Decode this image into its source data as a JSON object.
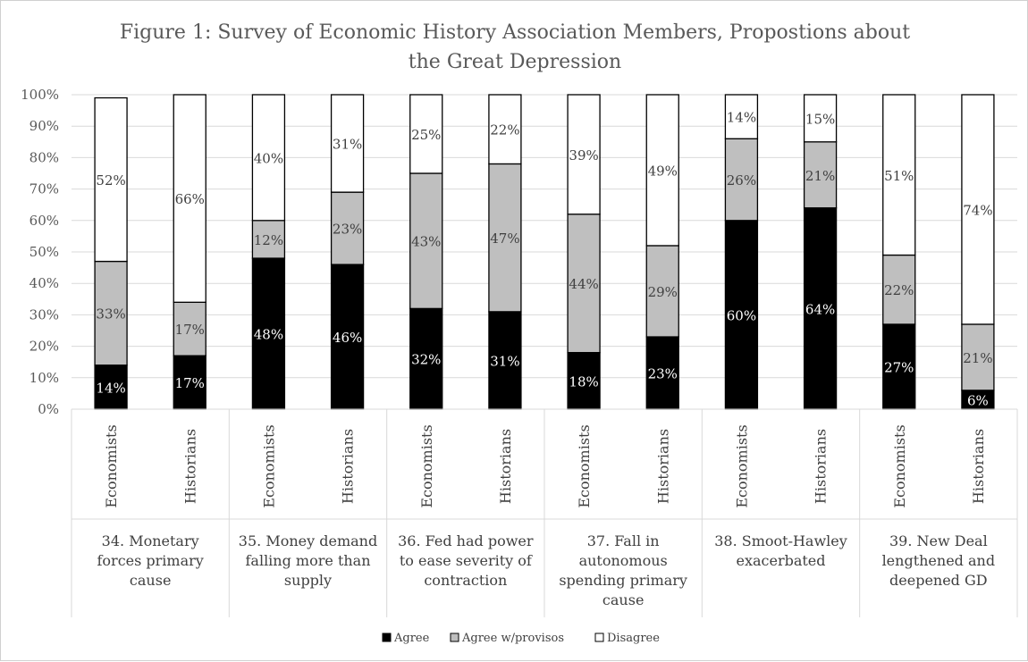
{
  "chart_data": {
    "type": "bar",
    "stacked": true,
    "percent": true,
    "title": "Figure 1: Survey of Economic History Association Members, Propostions about the Great Depression",
    "title_lines": [
      "Figure 1: Survey of Economic History Association Members, Propostions about",
      "the Great Depression"
    ],
    "ylim": [
      0,
      100
    ],
    "yticks": [
      "0%",
      "10%",
      "20%",
      "30%",
      "40%",
      "50%",
      "60%",
      "70%",
      "80%",
      "90%",
      "100%"
    ],
    "grid": true,
    "legend_position": "bottom",
    "groups": [
      {
        "label": "34. Monetary forces primary cause",
        "label_lines": [
          "34. Monetary",
          "forces primary",
          "cause"
        ]
      },
      {
        "label": "35. Money demand falling more than supply",
        "label_lines": [
          "35. Money demand",
          "falling more than",
          "supply"
        ]
      },
      {
        "label": "36. Fed had power to ease severity of contraction",
        "label_lines": [
          "36. Fed had power",
          "to ease severity of",
          "contraction"
        ]
      },
      {
        "label": "37. Fall in autonomous spending primary cause",
        "label_lines": [
          "37. Fall in",
          "autonomous",
          "spending primary",
          "cause"
        ]
      },
      {
        "label": "38. Smoot-Hawley exacerbated",
        "label_lines": [
          "38. Smoot-Hawley",
          "exacerbated"
        ]
      },
      {
        "label": "39. New Deal lengthened and deepened GD",
        "label_lines": [
          "39. New Deal",
          "lengthened and",
          "deepened GD"
        ]
      }
    ],
    "categories": [
      "Economists",
      "Historians",
      "Economists",
      "Historians",
      "Economists",
      "Historians",
      "Economists",
      "Historians",
      "Economists",
      "Historians",
      "Economists",
      "Historians"
    ],
    "series": [
      {
        "name": "Agree",
        "color": "#000000",
        "label_color": "#ffffff",
        "values": [
          14,
          17,
          48,
          46,
          32,
          31,
          18,
          23,
          60,
          64,
          27,
          6
        ],
        "labels": [
          "14%",
          "17%",
          "48%",
          "46%",
          "32%",
          "31%",
          "18%",
          "23%",
          "60%",
          "64%",
          "27%",
          "6%"
        ]
      },
      {
        "name": "Agree w/provisos",
        "color": "#bfbfbf",
        "label_color": "#404040",
        "values": [
          33,
          17,
          12,
          23,
          43,
          47,
          44,
          29,
          26,
          21,
          22,
          21
        ],
        "labels": [
          "33%",
          "17%",
          "12%",
          "23%",
          "43%",
          "47%",
          "44%",
          "29%",
          "26%",
          "21%",
          "22%",
          "21%"
        ]
      },
      {
        "name": "Disagree",
        "color": "#ffffff",
        "label_color": "#404040",
        "values": [
          52,
          66,
          40,
          31,
          25,
          22,
          39,
          49,
          14,
          15,
          51,
          74
        ],
        "labels": [
          "52%",
          "66%",
          "40%",
          "31%",
          "25%",
          "22%",
          "39%",
          "49%",
          "14%",
          "15%",
          "51%",
          "74%"
        ]
      }
    ]
  }
}
